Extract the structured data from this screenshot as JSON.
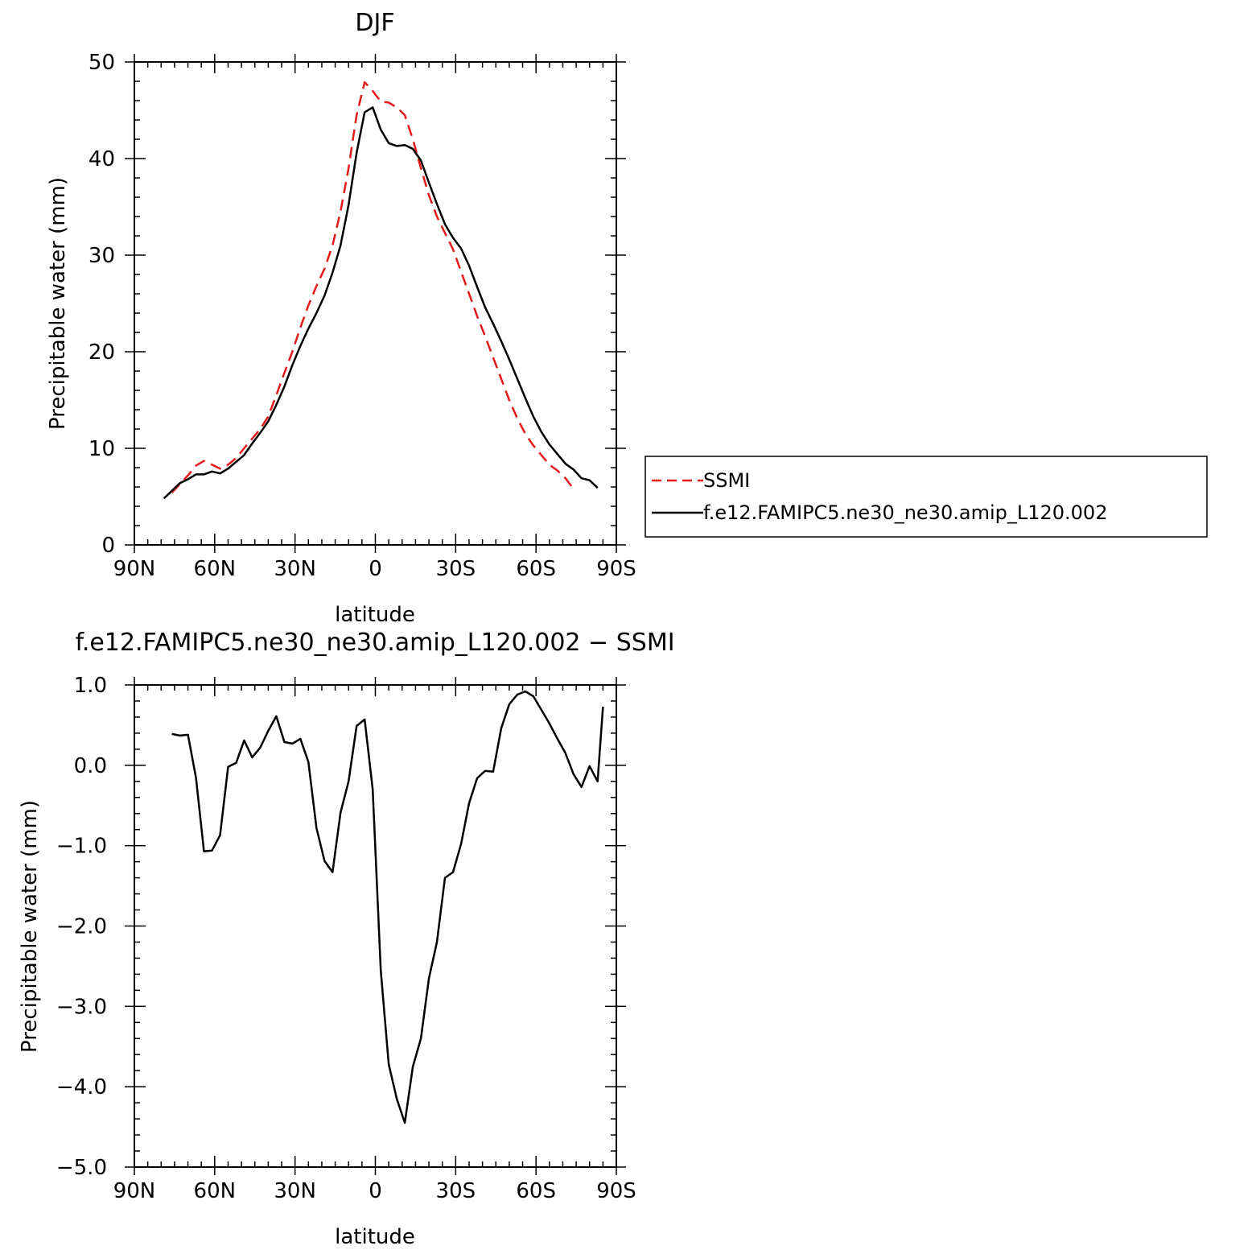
{
  "chart_data": [
    {
      "type": "line",
      "title": "DJF",
      "xlabel": "latitude",
      "ylabel": "Precipitable water (mm)",
      "xlim": [
        90,
        -90
      ],
      "ylim": [
        0,
        50
      ],
      "x_ticks": [
        90,
        60,
        30,
        0,
        -30,
        -60,
        -90
      ],
      "x_tick_labels": [
        "90N",
        "60N",
        "30N",
        "0",
        "30S",
        "60S",
        "90S"
      ],
      "y_ticks": [
        0,
        10,
        20,
        30,
        40,
        50
      ],
      "y_tick_labels": [
        "0",
        "10",
        "20",
        "30",
        "40",
        "50"
      ],
      "legend_position": "right",
      "series": [
        {
          "name": "SSMI",
          "color": "#e31a1c",
          "dash": true,
          "points": [
            [
              76,
              5.4
            ],
            [
              73,
              6.3
            ],
            [
              70,
              7.2
            ],
            [
              67,
              8.2
            ],
            [
              64,
              8.7
            ],
            [
              61,
              8.3
            ],
            [
              58,
              7.9
            ],
            [
              55,
              8.3
            ],
            [
              52,
              9.0
            ],
            [
              49,
              10.0
            ],
            [
              46,
              11.0
            ],
            [
              43,
              12.0
            ],
            [
              40,
              13.3
            ],
            [
              37,
              15.5
            ],
            [
              34,
              17.8
            ],
            [
              31,
              20.0
            ],
            [
              28,
              22.5
            ],
            [
              25,
              24.8
            ],
            [
              22,
              26.8
            ],
            [
              19,
              28.6
            ],
            [
              16,
              31.0
            ],
            [
              13,
              34.5
            ],
            [
              10,
              39.0
            ],
            [
              7,
              44.5
            ],
            [
              4,
              47.9
            ],
            [
              1,
              47.0
            ],
            [
              -2,
              45.9
            ],
            [
              -5,
              45.8
            ],
            [
              -8,
              45.3
            ],
            [
              -11,
              44.5
            ],
            [
              -14,
              42.0
            ],
            [
              -17,
              39.0
            ],
            [
              -20,
              36.2
            ],
            [
              -23,
              34.0
            ],
            [
              -26,
              32.3
            ],
            [
              -29,
              30.6
            ],
            [
              -32,
              28.3
            ],
            [
              -35,
              26.0
            ],
            [
              -38,
              23.7
            ],
            [
              -41,
              21.6
            ],
            [
              -44,
              19.4
            ],
            [
              -47,
              17.2
            ],
            [
              -50,
              15.0
            ],
            [
              -53,
              13.1
            ],
            [
              -56,
              11.5
            ],
            [
              -59,
              10.3
            ],
            [
              -62,
              9.3
            ],
            [
              -65,
              8.3
            ],
            [
              -68,
              7.7
            ],
            [
              -71,
              6.9
            ],
            [
              -74,
              5.8
            ]
          ]
        },
        {
          "name": "f.e12.FAMIPC5.ne30_ne30.amip_L120.002",
          "color": "#000000",
          "dash": false,
          "points": [
            [
              79,
              4.8
            ],
            [
              76,
              5.6
            ],
            [
              73,
              6.4
            ],
            [
              70,
              6.8
            ],
            [
              67,
              7.3
            ],
            [
              64,
              7.3
            ],
            [
              61,
              7.6
            ],
            [
              58,
              7.4
            ],
            [
              55,
              7.9
            ],
            [
              52,
              8.6
            ],
            [
              49,
              9.3
            ],
            [
              46,
              10.5
            ],
            [
              43,
              11.6
            ],
            [
              40,
              12.8
            ],
            [
              37,
              14.5
            ],
            [
              34,
              16.4
            ],
            [
              31,
              18.6
            ],
            [
              28,
              20.6
            ],
            [
              25,
              22.4
            ],
            [
              22,
              24.0
            ],
            [
              19,
              25.8
            ],
            [
              16,
              28.2
            ],
            [
              13,
              31.0
            ],
            [
              10,
              35.2
            ],
            [
              7,
              40.6
            ],
            [
              4,
              44.8
            ],
            [
              1,
              45.3
            ],
            [
              -2,
              43.0
            ],
            [
              -5,
              41.6
            ],
            [
              -8,
              41.3
            ],
            [
              -11,
              41.4
            ],
            [
              -14,
              41.0
            ],
            [
              -17,
              39.8
            ],
            [
              -20,
              37.5
            ],
            [
              -23,
              35.3
            ],
            [
              -26,
              33.2
            ],
            [
              -29,
              31.8
            ],
            [
              -32,
              30.7
            ],
            [
              -35,
              28.9
            ],
            [
              -38,
              26.7
            ],
            [
              -41,
              24.6
            ],
            [
              -44,
              22.9
            ],
            [
              -47,
              21.1
            ],
            [
              -50,
              19.2
            ],
            [
              -53,
              17.2
            ],
            [
              -56,
              15.2
            ],
            [
              -59,
              13.3
            ],
            [
              -62,
              11.7
            ],
            [
              -65,
              10.4
            ],
            [
              -68,
              9.4
            ],
            [
              -71,
              8.4
            ],
            [
              -74,
              7.8
            ],
            [
              -77,
              6.9
            ],
            [
              -80,
              6.7
            ],
            [
              -83,
              5.9
            ]
          ]
        }
      ]
    },
    {
      "type": "line",
      "title": "f.e12.FAMIPC5.ne30_ne30.amip_L120.002 − SSMI",
      "xlabel": "latitude",
      "ylabel": "Precipitable water (mm)",
      "xlim": [
        90,
        -90
      ],
      "ylim": [
        -5,
        1
      ],
      "x_ticks": [
        90,
        60,
        30,
        0,
        -30,
        -60,
        -90
      ],
      "x_tick_labels": [
        "90N",
        "60N",
        "30N",
        "0",
        "30S",
        "60S",
        "90S"
      ],
      "y_ticks": [
        1,
        0,
        -1,
        -2,
        -3,
        -4,
        -5
      ],
      "y_tick_labels": [
        "1.0",
        "0.0",
        "−1.0",
        "−2.0",
        "−3.0",
        "−4.0",
        "−5.0"
      ],
      "series": [
        {
          "color": "#000000",
          "dash": false,
          "points": [
            [
              76,
              0.39
            ],
            [
              73,
              0.37
            ],
            [
              70,
              0.38
            ],
            [
              67,
              -0.15
            ],
            [
              64,
              -1.07
            ],
            [
              61,
              -1.06
            ],
            [
              58,
              -0.87
            ],
            [
              55,
              -0.02
            ],
            [
              52,
              0.03
            ],
            [
              49,
              0.31
            ],
            [
              46,
              0.1
            ],
            [
              43,
              0.22
            ],
            [
              40,
              0.43
            ],
            [
              37,
              0.61
            ],
            [
              34,
              0.29
            ],
            [
              31,
              0.27
            ],
            [
              28,
              0.33
            ],
            [
              25,
              0.04
            ],
            [
              22,
              -0.78
            ],
            [
              19,
              -1.19
            ],
            [
              16,
              -1.33
            ],
            [
              13,
              -0.59
            ],
            [
              10,
              -0.2
            ],
            [
              7,
              0.49
            ],
            [
              4,
              0.57
            ],
            [
              1,
              -0.3
            ],
            [
              -2,
              -2.55
            ],
            [
              -5,
              -3.72
            ],
            [
              -8,
              -4.15
            ],
            [
              -11,
              -4.45
            ],
            [
              -14,
              -3.75
            ],
            [
              -17,
              -3.4
            ],
            [
              -20,
              -2.65
            ],
            [
              -23,
              -2.2
            ],
            [
              -26,
              -1.4
            ],
            [
              -29,
              -1.33
            ],
            [
              -32,
              -0.98
            ],
            [
              -35,
              -0.47
            ],
            [
              -38,
              -0.16
            ],
            [
              -41,
              -0.07
            ],
            [
              -44,
              -0.08
            ],
            [
              -47,
              0.46
            ],
            [
              -50,
              0.76
            ],
            [
              -53,
              0.88
            ],
            [
              -56,
              0.92
            ],
            [
              -59,
              0.86
            ],
            [
              -62,
              0.69
            ],
            [
              -65,
              0.52
            ],
            [
              -68,
              0.33
            ],
            [
              -71,
              0.15
            ],
            [
              -74,
              -0.11
            ],
            [
              -77,
              -0.27
            ],
            [
              -80,
              -0.01
            ],
            [
              -83,
              -0.2
            ],
            [
              -85,
              0.73
            ]
          ]
        }
      ]
    }
  ]
}
